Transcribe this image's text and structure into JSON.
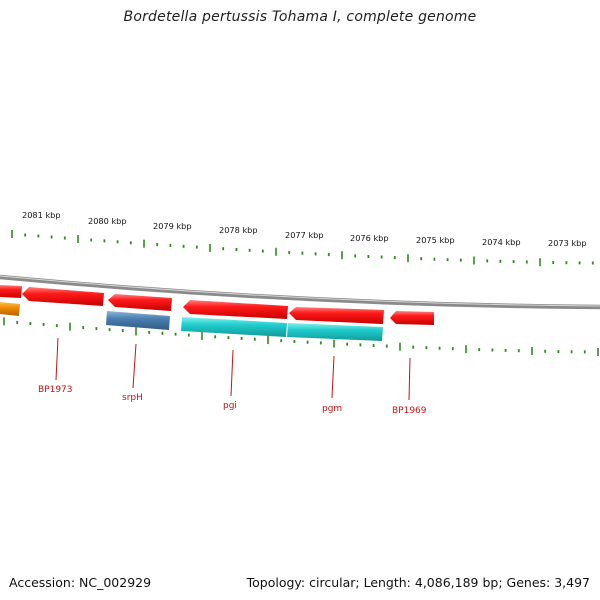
{
  "title": "Bordetella pertussis Tohama I, complete genome",
  "accession_text": "Accession: NC_002929",
  "summary_text": "Topology: circular; Length: 4,086,189 bp; Genes: 3,497",
  "colors": {
    "backbone": "#8a8a8a",
    "tick": "#2e8b1e",
    "gene_forward": "#ff1a1a",
    "gene_orange": "#f08c00",
    "gene_blue": "#4a7fb0",
    "gene_cyan": "#20cccc",
    "label": "#cc1111"
  },
  "scale_labels": [
    "2081 kbp",
    "2080 kbp",
    "2079 kbp",
    "2078 kbp",
    "2077 kbp",
    "2076 kbp",
    "2075 kbp",
    "2074 kbp",
    "2073 kbp"
  ],
  "gene_labels": [
    "BP1973",
    "srpH",
    "pgi",
    "pgm",
    "BP1969"
  ]
}
